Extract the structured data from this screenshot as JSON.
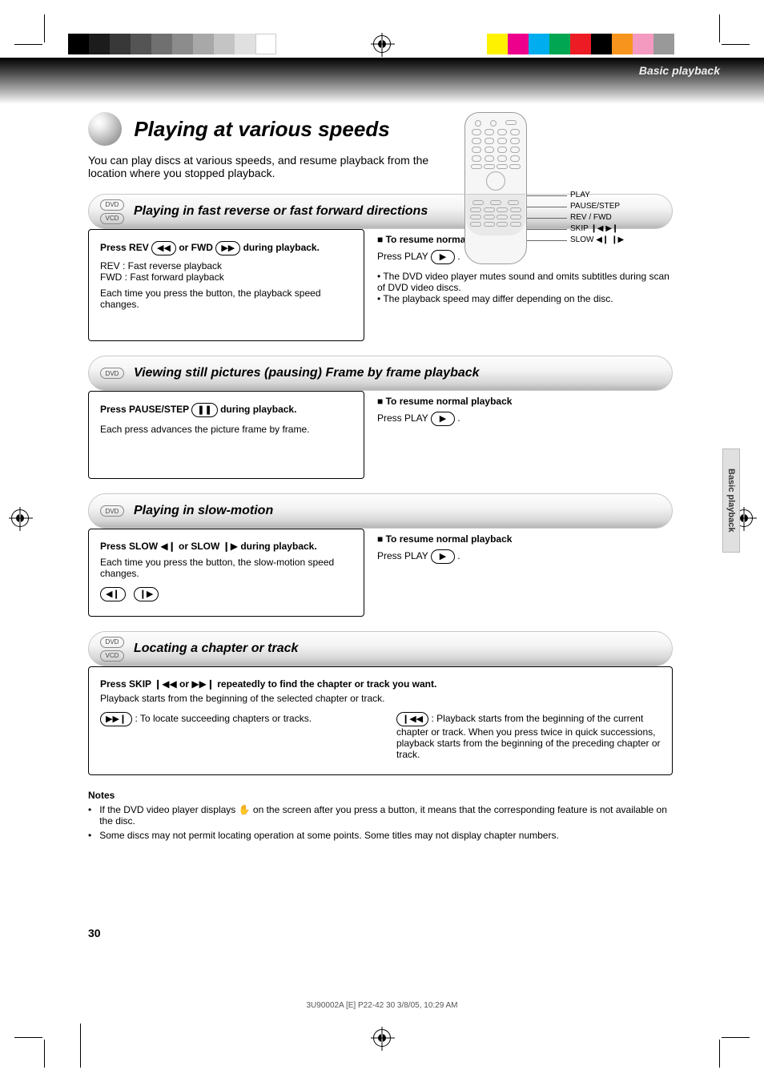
{
  "print_marks": {
    "gray_strip_shades": [
      "#000000",
      "#1c1c1c",
      "#383838",
      "#545454",
      "#707070",
      "#8c8c8c",
      "#a8a8a8",
      "#c4c4c4",
      "#e0e0e0",
      "#ffffff"
    ],
    "cmyk_strip_colors": [
      "#fff200",
      "#ec008c",
      "#00aeef",
      "#00a651",
      "#ed1c24",
      "#000000",
      "#f7941d",
      "#f49ac1",
      "#999999"
    ]
  },
  "running_header": "Basic playback",
  "page_number": "30",
  "side_tab": "Basic playback",
  "title": "Playing at various speeds",
  "subtitle": "You can play discs at various speeds, and resume playback from the location where you stopped playback.",
  "remote": {
    "labels": {
      "play": "PLAY",
      "pause": "PAUSE/STEP",
      "rev_fwd": "REV / FWD",
      "skip": "SKIP ",
      "slow": "SLOW "
    },
    "skip_icons": "❙◀  ▶❙",
    "slow_icons": "◀❙  ❙▶"
  },
  "sections": [
    {
      "bar_discs": [
        "DVD",
        "VCD"
      ],
      "title": "Playing in fast reverse or fast forward directions",
      "left": {
        "line1_prefix": "Press REV ",
        "line1_btn1": "◀◀",
        "line1_mid": " or FWD ",
        "line1_btn2": "▶▶",
        "line1_suffix": " during playback.",
        "line2": "REV : Fast reverse playback",
        "line3": "FWD : Fast forward playback",
        "line4": "Each time you press the button, the playback speed changes."
      },
      "right": {
        "heading_icon": "■",
        "heading": "To resume normal playback",
        "line_prefix": "Press PLAY ",
        "line_btn": "▶",
        "line_suffix": ".",
        "note": "• The DVD video player mutes sound and omits subtitles during scan of DVD video discs.\n• The playback speed may differ depending on the disc."
      }
    },
    {
      "bar_discs": [
        "DVD"
      ],
      "title": "Viewing still pictures (pausing)  Frame by frame playback",
      "left": {
        "line1_prefix": "Press PAUSE/STEP ",
        "line1_btn": "❚❚",
        "line1_suffix": " during playback.",
        "line2": "Each press advances the picture frame by frame."
      },
      "right": {
        "heading_icon": "■",
        "heading": "To resume normal playback",
        "line_prefix": "Press PLAY ",
        "line_btn": "▶",
        "line_suffix": "."
      }
    },
    {
      "bar_discs": [
        "DVD"
      ],
      "title": "Playing in slow-motion",
      "left": {
        "line1_prefix": "Press SLOW ",
        "line1_icon1": "◀❙",
        "line1_mid": " or SLOW ",
        "line1_icon2": "❙▶",
        "line1_suffix": " during playback.",
        "line2": "Each time you press the button, the slow-motion speed changes.",
        "btn1": "◀❙",
        "btn2": "❙▶"
      },
      "right": {
        "heading_icon": "■",
        "heading": "To resume normal playback",
        "line_prefix": "Press PLAY ",
        "line_btn": "▶",
        "line_suffix": "."
      }
    },
    {
      "bar_discs": [
        "DVD",
        "VCD"
      ],
      "title": "Locating a chapter or track",
      "left": {
        "line1_prefix": "Press SKIP ",
        "line1_icon1": "❙◀◀",
        "line1_mid": " or ",
        "line1_icon2": "▶▶❙",
        "line1_suffix": " repeatedly to find the chapter or track you want.",
        "line2": "Playback starts from the beginning of the selected chapter or track.",
        "fwd_btn": "▶▶❙",
        "fwd_text": " : To locate succeeding chapters or tracks.",
        "rev_btn": "❙◀◀",
        "rev_text": " : Playback starts from the beginning of the current chapter or track. When you press twice in quick successions, playback starts from the beginning of the preceding chapter or track."
      }
    }
  ],
  "notes": {
    "heading": "Notes",
    "items": [
      "If the DVD video player displays       on the screen after you press a button, it means that the corresponding feature is not available on the disc.",
      "Some discs may not permit locating operation at some points. Some titles may not display chapter numbers."
    ],
    "hand_glyph": "✋"
  },
  "footer": "3U90002A [E] P22-42         30                                   3/8/05, 10:29 AM"
}
